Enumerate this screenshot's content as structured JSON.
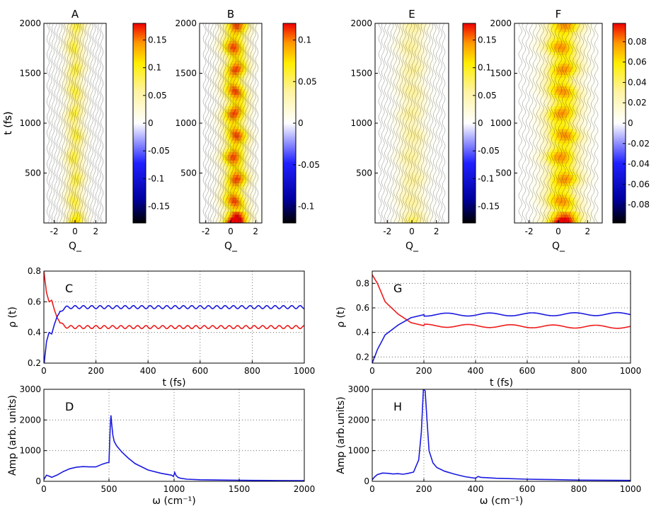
{
  "chart_data": [
    {
      "id": "A",
      "type": "heatmap",
      "title": "A",
      "xlabel": "Q_",
      "ylabel": "t (fs)",
      "xlim": [
        -3,
        3
      ],
      "ylim": [
        0,
        2000
      ],
      "xticks": [
        -2,
        0,
        2
      ],
      "yticks": [
        500,
        1000,
        1500,
        2000
      ],
      "xtick_labels": [
        "-2",
        "0",
        "2"
      ],
      "ytick_labels": [
        "500",
        "1000",
        "1500",
        "2000"
      ],
      "colorbar": {
        "range": [
          -0.18,
          0.18
        ],
        "ticks": [
          0.15,
          0.1,
          0.05,
          0,
          -0.05,
          -0.1,
          -0.15
        ],
        "labels": [
          "0.15",
          "0.1",
          "0.05",
          "0",
          "-0.05",
          "-0.1",
          "-0.15"
        ]
      },
      "peak": 0.09,
      "center": 0.0,
      "width": 0.9
    },
    {
      "id": "B",
      "type": "heatmap",
      "title": "B",
      "xlabel": "Q_",
      "ylabel": "",
      "xlim": [
        -2.5,
        2.5
      ],
      "ylim": [
        0,
        2000
      ],
      "xticks": [
        -2,
        0,
        2
      ],
      "yticks": [
        500,
        1000,
        1500,
        2000
      ],
      "xtick_labels": [
        "-2",
        "0",
        "2"
      ],
      "ytick_labels": [
        "500",
        "1000",
        "1500",
        "2000"
      ],
      "colorbar": {
        "range": [
          -0.12,
          0.12
        ],
        "ticks": [
          0.1,
          0.05,
          0,
          -0.05,
          -0.1
        ],
        "labels": [
          "0.1",
          "0.05",
          "0",
          "-0.05",
          "-0.1"
        ]
      },
      "peak": 0.11,
      "center": 0.35,
      "width": 1.0
    },
    {
      "id": "E",
      "type": "heatmap",
      "title": "E",
      "xlabel": "Q_",
      "ylabel": "t (fs)",
      "xlim": [
        -3,
        3
      ],
      "ylim": [
        0,
        2000
      ],
      "xticks": [
        -2,
        0,
        2
      ],
      "yticks": [
        500,
        1000,
        1500,
        2000
      ],
      "xtick_labels": [
        "-2",
        "0",
        "2"
      ],
      "ytick_labels": [
        "500",
        "1000",
        "1500",
        "2000"
      ],
      "colorbar": {
        "range": [
          -0.18,
          0.18
        ],
        "ticks": [
          0.15,
          0.1,
          0.05,
          0,
          -0.05,
          -0.1,
          -0.15
        ],
        "labels": [
          "0.15",
          "0.1",
          "0.05",
          "0",
          "-0.05",
          "-0.1",
          "-0.15"
        ]
      },
      "peak": 0.06,
      "center": 0.0,
      "width": 1.1
    },
    {
      "id": "F",
      "type": "heatmap",
      "title": "F",
      "xlabel": "Q_",
      "ylabel": "",
      "xlim": [
        -3,
        3
      ],
      "ylim": [
        0,
        2000
      ],
      "xticks": [
        -2,
        0,
        2
      ],
      "yticks": [
        500,
        1000,
        1500,
        2000
      ],
      "xtick_labels": [
        "-2",
        "0",
        "2"
      ],
      "ytick_labels": [
        "500",
        "1000",
        "1500",
        "2000"
      ],
      "colorbar": {
        "range": [
          -0.098,
          0.098
        ],
        "ticks": [
          0.08,
          0.06,
          0.04,
          0.02,
          0,
          -0.02,
          -0.04,
          -0.06,
          -0.08
        ],
        "labels": [
          "0.08",
          "0.06",
          "0.04",
          "0.02",
          "0",
          "-0.02",
          "-0.04",
          "-0.06",
          "-0.08"
        ]
      },
      "peak": 0.08,
      "center": 0.3,
      "width": 1.2
    },
    {
      "id": "C",
      "type": "line",
      "label": "C",
      "xlabel": "t (fs)",
      "ylabel": "ρ (t)",
      "xlim": [
        0,
        1000
      ],
      "ylim": [
        0.2,
        0.8
      ],
      "xticks": [
        0,
        200,
        400,
        600,
        800,
        1000
      ],
      "yticks": [
        0.2,
        0.4,
        0.6,
        0.8
      ],
      "xtick_labels": [
        "0",
        "200",
        "400",
        "600",
        "800",
        "1000"
      ],
      "ytick_labels": [
        "0.2",
        "0.4",
        "0.6",
        "0.8"
      ],
      "grid": true,
      "series": [
        {
          "name": "red",
          "color": "#ee1c1c",
          "x": [
            0,
            10,
            20,
            30,
            40,
            50,
            60,
            70,
            80,
            100,
            200,
            400,
            600,
            800,
            1000
          ],
          "y": [
            0.8,
            0.66,
            0.6,
            0.61,
            0.55,
            0.5,
            0.47,
            0.45,
            0.44,
            0.435,
            0.435,
            0.435,
            0.435,
            0.435,
            0.435
          ],
          "osc_amp": 0.01,
          "osc_period": 32
        },
        {
          "name": "blue",
          "color": "#1a1ae0",
          "x": [
            0,
            10,
            20,
            30,
            40,
            50,
            60,
            70,
            80,
            100,
            200,
            400,
            600,
            800,
            1000
          ],
          "y": [
            0.18,
            0.34,
            0.4,
            0.39,
            0.45,
            0.5,
            0.53,
            0.55,
            0.56,
            0.565,
            0.565,
            0.565,
            0.565,
            0.565,
            0.565
          ],
          "osc_amp": 0.01,
          "osc_period": 32
        }
      ]
    },
    {
      "id": "G",
      "type": "line",
      "label": "G",
      "xlabel": "t (fs)",
      "ylabel": "ρ (t)",
      "xlim": [
        0,
        1000
      ],
      "ylim": [
        0.15,
        0.9
      ],
      "xticks": [
        0,
        200,
        400,
        600,
        800,
        1000
      ],
      "yticks": [
        0.2,
        0.4,
        0.6,
        0.8
      ],
      "xtick_labels": [
        "0",
        "200",
        "400",
        "600",
        "800",
        "1000"
      ],
      "ytick_labels": [
        "0.2",
        "0.4",
        "0.6",
        "0.8"
      ],
      "grid": true,
      "series": [
        {
          "name": "red",
          "color": "#ee1c1c",
          "x": [
            0,
            20,
            50,
            100,
            150,
            200,
            1000
          ],
          "y": [
            0.87,
            0.8,
            0.65,
            0.55,
            0.48,
            0.455,
            0.445
          ],
          "osc_amp": 0.012,
          "osc_period": 165,
          "osc_start": 200
        },
        {
          "name": "blue",
          "color": "#1a1ae0",
          "x": [
            0,
            20,
            50,
            100,
            150,
            200,
            1000
          ],
          "y": [
            0.15,
            0.26,
            0.38,
            0.46,
            0.52,
            0.545,
            0.55
          ],
          "osc_amp": 0.012,
          "osc_period": 165,
          "osc_start": 200
        }
      ]
    },
    {
      "id": "D",
      "type": "line",
      "label": "D",
      "xlabel": "ω (cm⁻¹)",
      "ylabel": "Amp (arb. units)",
      "xlim": [
        0,
        2000
      ],
      "ylim": [
        0,
        3000
      ],
      "xticks": [
        0,
        500,
        1000,
        1500,
        2000
      ],
      "yticks": [
        0,
        1000,
        2000,
        3000
      ],
      "xtick_labels": [
        "0",
        "500",
        "1000",
        "1500",
        "2000"
      ],
      "ytick_labels": [
        "0",
        "1000",
        "2000",
        "3000"
      ],
      "grid": true,
      "series": [
        {
          "name": "spectrum",
          "color": "#1a1ae0",
          "x": [
            0,
            20,
            40,
            60,
            100,
            150,
            200,
            250,
            300,
            350,
            400,
            450,
            480,
            500,
            510,
            515,
            520,
            530,
            540,
            560,
            600,
            650,
            700,
            800,
            900,
            980,
            995,
            1005,
            1015,
            1030,
            1050,
            1100,
            1200,
            1400,
            1600,
            1800,
            2000
          ],
          "y": [
            60,
            200,
            170,
            130,
            200,
            320,
            410,
            460,
            480,
            470,
            470,
            560,
            600,
            620,
            1800,
            2150,
            1900,
            1500,
            1300,
            1150,
            950,
            750,
            580,
            370,
            260,
            200,
            160,
            290,
            190,
            130,
            100,
            70,
            50,
            40,
            30,
            25,
            20
          ]
        }
      ]
    },
    {
      "id": "H",
      "type": "line",
      "label": "H",
      "xlabel": "ω (cm⁻¹)",
      "ylabel": "Amp (arb.units)",
      "xlim": [
        0,
        1000
      ],
      "ylim": [
        0,
        3000
      ],
      "xticks": [
        0,
        200,
        400,
        600,
        800,
        1000
      ],
      "yticks": [
        0,
        1000,
        2000,
        3000
      ],
      "xtick_labels": [
        "0",
        "200",
        "400",
        "600",
        "800",
        "1000"
      ],
      "ytick_labels": [
        "0",
        "1000",
        "2000",
        "3000"
      ],
      "grid": true,
      "series": [
        {
          "name": "spectrum",
          "color": "#1a1ae0",
          "x": [
            0,
            10,
            20,
            40,
            60,
            80,
            100,
            120,
            140,
            160,
            180,
            190,
            198,
            205,
            212,
            220,
            235,
            250,
            280,
            320,
            360,
            400,
            410,
            420,
            440,
            480,
            520,
            600,
            700,
            800,
            1000
          ],
          "y": [
            50,
            150,
            220,
            270,
            260,
            240,
            250,
            230,
            260,
            300,
            700,
            1600,
            3000,
            2950,
            2000,
            1000,
            600,
            450,
            330,
            230,
            150,
            100,
            160,
            130,
            120,
            100,
            90,
            70,
            55,
            40,
            30
          ]
        }
      ]
    }
  ]
}
